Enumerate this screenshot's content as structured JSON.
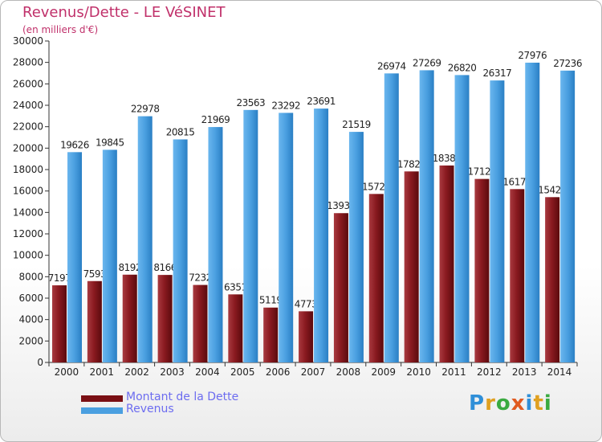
{
  "header": {
    "title": "Revenus/Dette - LE VéSINET",
    "subtitle": "(en milliers d'€)"
  },
  "legend": [
    {
      "label": "Montant de la Dette",
      "color": "#7a0f14"
    },
    {
      "label": "Revenus",
      "color": "#4a9fe0"
    }
  ],
  "logo": {
    "text": "Proxiti"
  },
  "chart_data": {
    "type": "bar",
    "title": "Revenus/Dette - LE VéSINET",
    "subtitle": "(en milliers d'€)",
    "xlabel": "",
    "ylabel": "",
    "ylim": [
      0,
      30000
    ],
    "ytick_step": 2000,
    "grid": false,
    "legend_position": "bottom-left",
    "categories": [
      "2000",
      "2001",
      "2002",
      "2003",
      "2004",
      "2005",
      "2006",
      "2007",
      "2008",
      "2009",
      "2010",
      "2011",
      "2012",
      "2013",
      "2014"
    ],
    "series": [
      {
        "name": "Montant de la Dette",
        "color": "#7a0f14",
        "values": [
          7197,
          7593,
          8192,
          8166,
          7232,
          6351,
          5119,
          4773,
          13932,
          15725,
          17827,
          18381,
          17127,
          16177,
          15426
        ],
        "labels": [
          "7197",
          "7593",
          "8192",
          "8166",
          "7232",
          "6351",
          "5119",
          "4773",
          "13932",
          "15725",
          "17827",
          "18381",
          "17127",
          "16177",
          "15426"
        ]
      },
      {
        "name": "Revenus",
        "color": "#4a9fe0",
        "values": [
          19626,
          19845,
          22978,
          20815,
          21969,
          23563,
          23292,
          23691,
          21519,
          26974,
          27269,
          26820,
          26317,
          27976,
          27236
        ],
        "labels": [
          "19626",
          "19845",
          "22978",
          "20815",
          "21969",
          "23563",
          "23292",
          "23691",
          "21519",
          "26974",
          "27269",
          "26820",
          "26317",
          "27976",
          "27236"
        ]
      }
    ]
  }
}
